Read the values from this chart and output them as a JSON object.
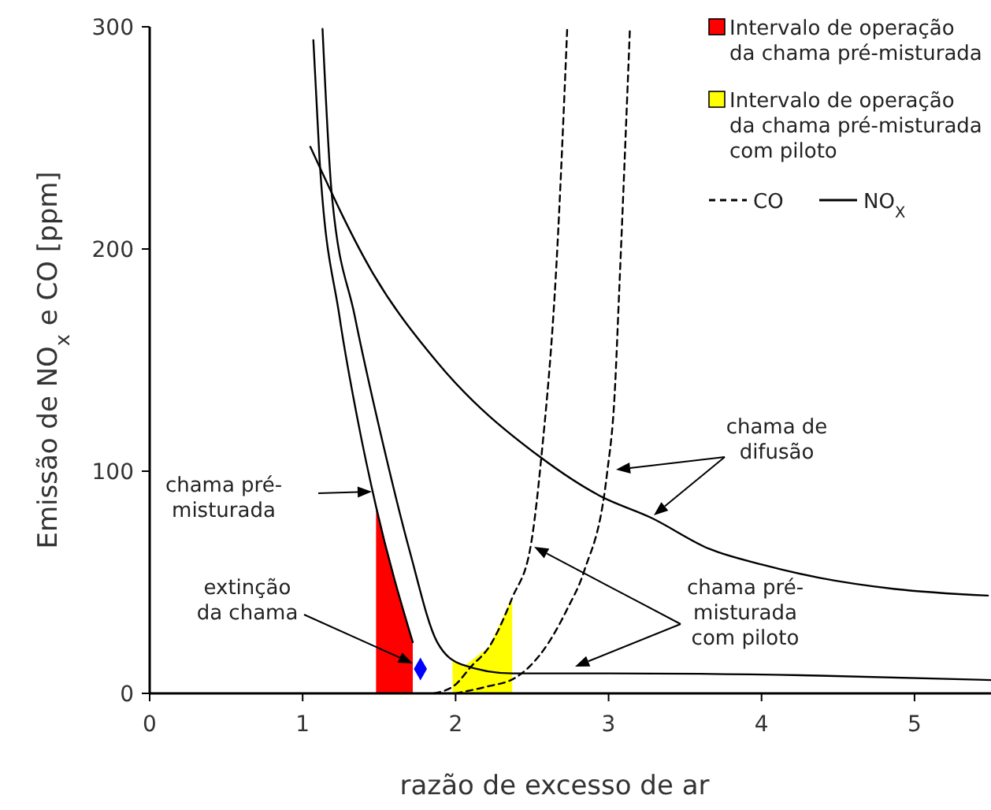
{
  "chart_data": {
    "type": "line",
    "xlabel": "razão de excesso de ar",
    "ylabel": "Emissão de NO$_{x}$ e CO [ppm]",
    "xlim": [
      0,
      5.5
    ],
    "xticks": [
      0,
      1,
      2,
      3,
      4,
      5
    ],
    "ylim": [
      0,
      300
    ],
    "yticks": [
      0,
      100,
      200,
      300
    ],
    "grid": false,
    "legend": "top right",
    "series": [
      {
        "name": "Intervalo de operação da chama pré-misturada",
        "type": "area",
        "color": "#ff0000",
        "x": [
          1.48,
          1.6,
          1.72
        ],
        "values": [
          84,
          52,
          23
        ]
      },
      {
        "name": "Intervalo de operação da chama pré-misturada com piloto",
        "type": "area",
        "color": "#ffff00",
        "x": [
          1.98,
          2.05,
          2.22,
          2.37
        ],
        "values": [
          15,
          12,
          21,
          43
        ]
      },
      {
        "name": "CO",
        "color": "#000000",
        "line_style": "dashed",
        "x": [
          1.86,
          2.0,
          2.1,
          2.22,
          2.37,
          2.49,
          2.56,
          2.66,
          2.73
        ],
        "values": [
          0,
          4,
          12,
          21,
          43,
          66,
          106,
          194,
          300
        ]
      },
      {
        "color": "#000000",
        "line_style": "dashed",
        "x": [
          2.0,
          2.2,
          2.39,
          2.6,
          2.73,
          2.84,
          2.99,
          3.04,
          3.07,
          3.14
        ],
        "values": [
          0,
          3,
          7,
          22,
          38,
          55,
          99,
          135,
          182,
          300
        ]
      },
      {
        "name": "NO$_{X}$",
        "color": "#000000",
        "line_style": "solid",
        "x": [
          1.07,
          1.11,
          1.24,
          1.36,
          1.48,
          1.72
        ],
        "values": [
          294,
          241,
          170,
          123,
          84,
          23
        ]
      },
      {
        "color": "#000000",
        "line_style": "solid",
        "x": [
          1.13,
          1.19,
          1.34,
          1.53,
          1.7,
          1.88,
          2.04,
          2.37,
          3.0,
          4.38,
          5.5
        ],
        "values": [
          299,
          225,
          170,
          111,
          64,
          23,
          13,
          9,
          9,
          8,
          6
        ]
      },
      {
        "color": "#000000",
        "line_style": "solid",
        "x": [
          1.05,
          1.46,
          1.88,
          2.56,
          2.94,
          3.28,
          3.66,
          4.0,
          4.38,
          4.87,
          5.48
        ],
        "values": [
          246,
          189,
          149,
          106,
          89,
          79,
          65,
          58,
          52,
          47,
          44
        ]
      },
      {
        "type": "scatter",
        "color": "#0000ff",
        "marker": "diamond",
        "x": [
          1.77
        ],
        "values": [
          11
        ]
      }
    ],
    "annotations": [
      "chama pré-\nmisturada",
      "extinção\nda chama",
      "chama de\ndifusão",
      "chama pré-\nmisturada\ncom piloto"
    ]
  }
}
